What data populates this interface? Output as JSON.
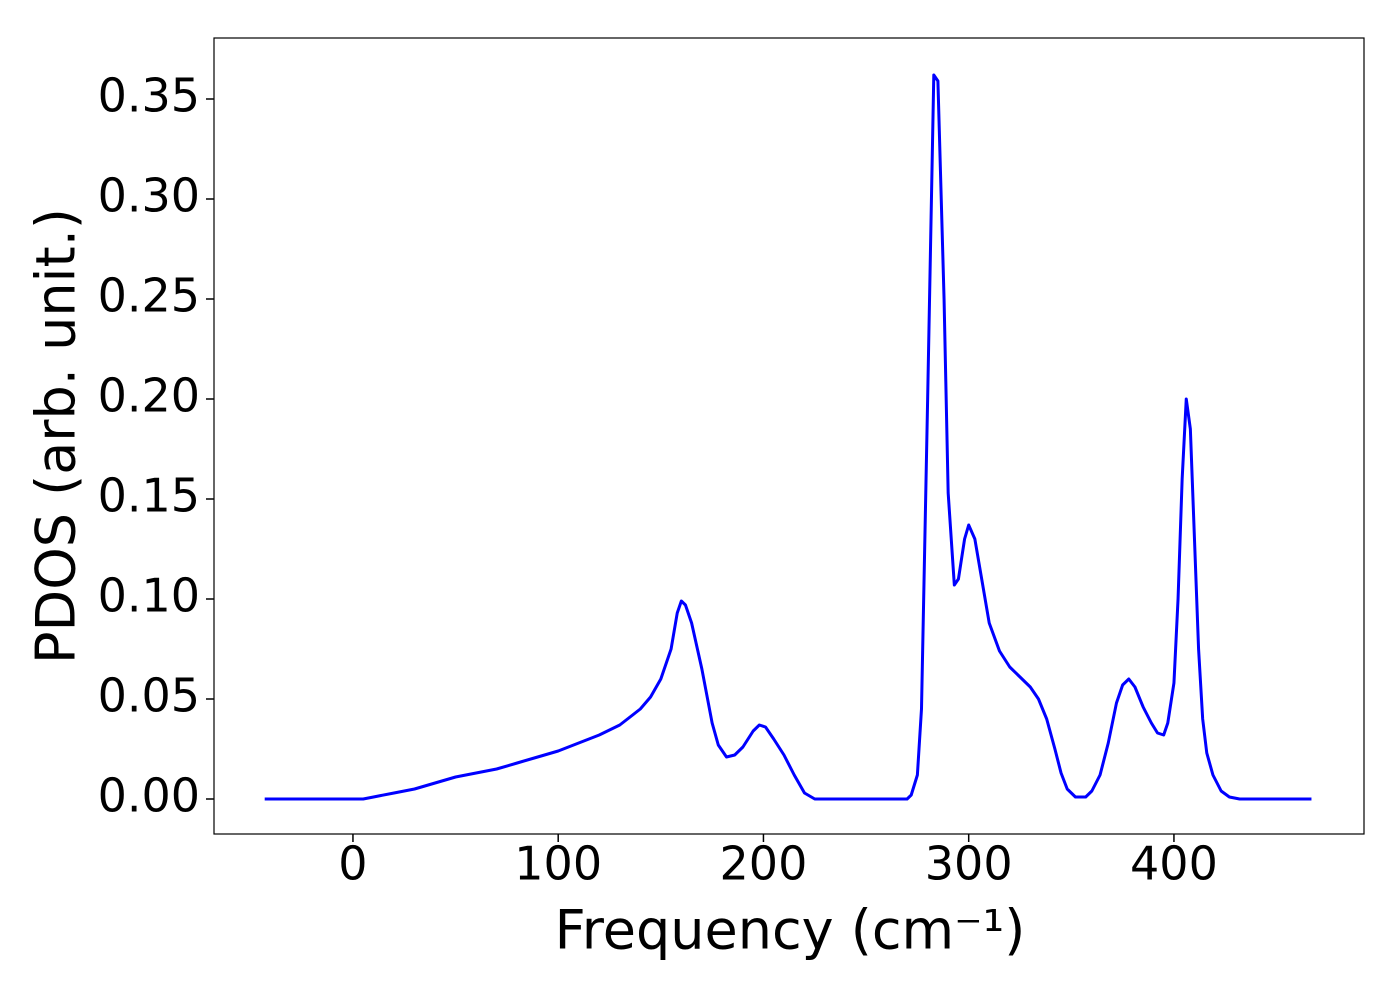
{
  "chart_data": {
    "type": "line",
    "xlabel": "Frequency (cm⁻¹)",
    "ylabel": "PDOS (arb. unit.)",
    "xlim": [
      -67.7,
      492.6
    ],
    "ylim": [
      -0.0175,
      0.3805
    ],
    "xticks": [
      0,
      100,
      200,
      300,
      400
    ],
    "yticks": [
      {
        "value": 0,
        "label": "0.00"
      },
      {
        "value": 0.05,
        "label": "0.05"
      },
      {
        "value": 0.1,
        "label": "0.10"
      },
      {
        "value": 0.15,
        "label": "0.15"
      },
      {
        "value": 0.2,
        "label": "0.20"
      },
      {
        "value": 0.25,
        "label": "0.25"
      },
      {
        "value": 0.3,
        "label": "0.30"
      },
      {
        "value": 0.35,
        "label": "0.35"
      }
    ],
    "x": [
      -43,
      0,
      5,
      10,
      20,
      30,
      40,
      50,
      60,
      70,
      80,
      90,
      100,
      110,
      120,
      130,
      140,
      145,
      150,
      155,
      158,
      160,
      162,
      165,
      170,
      175,
      178,
      182,
      186,
      190,
      195,
      198,
      201,
      205,
      210,
      215,
      220,
      225,
      270,
      272,
      275,
      277,
      280,
      283,
      285,
      288,
      290,
      293,
      295,
      298,
      300,
      303,
      306,
      310,
      315,
      320,
      325,
      330,
      334,
      338,
      342,
      345,
      348,
      352,
      357,
      360,
      364,
      368,
      372,
      375,
      378,
      381,
      385,
      389,
      392,
      395,
      397,
      400,
      402,
      404,
      406,
      408,
      410,
      412,
      414,
      416,
      419,
      423,
      427,
      432,
      467
    ],
    "series": [
      {
        "color": "#0000ff",
        "values": [
          0,
          0,
          0,
          0.001,
          0.003,
          0.005,
          0.008,
          0.011,
          0.013,
          0.015,
          0.018,
          0.021,
          0.024,
          0.028,
          0.032,
          0.037,
          0.045,
          0.051,
          0.06,
          0.075,
          0.093,
          0.099,
          0.097,
          0.088,
          0.065,
          0.038,
          0.027,
          0.021,
          0.022,
          0.026,
          0.034,
          0.037,
          0.036,
          0.03,
          0.022,
          0.012,
          0.003,
          0,
          0,
          0.002,
          0.012,
          0.045,
          0.2,
          0.362,
          0.359,
          0.25,
          0.153,
          0.107,
          0.11,
          0.13,
          0.137,
          0.13,
          0.112,
          0.088,
          0.074,
          0.066,
          0.061,
          0.056,
          0.05,
          0.04,
          0.025,
          0.013,
          0.005,
          0.001,
          0.001,
          0.004,
          0.012,
          0.028,
          0.048,
          0.057,
          0.06,
          0.056,
          0.046,
          0.038,
          0.033,
          0.032,
          0.038,
          0.058,
          0.1,
          0.16,
          0.2,
          0.185,
          0.13,
          0.075,
          0.04,
          0.023,
          0.012,
          0.004,
          0.001,
          0,
          0
        ]
      }
    ]
  }
}
